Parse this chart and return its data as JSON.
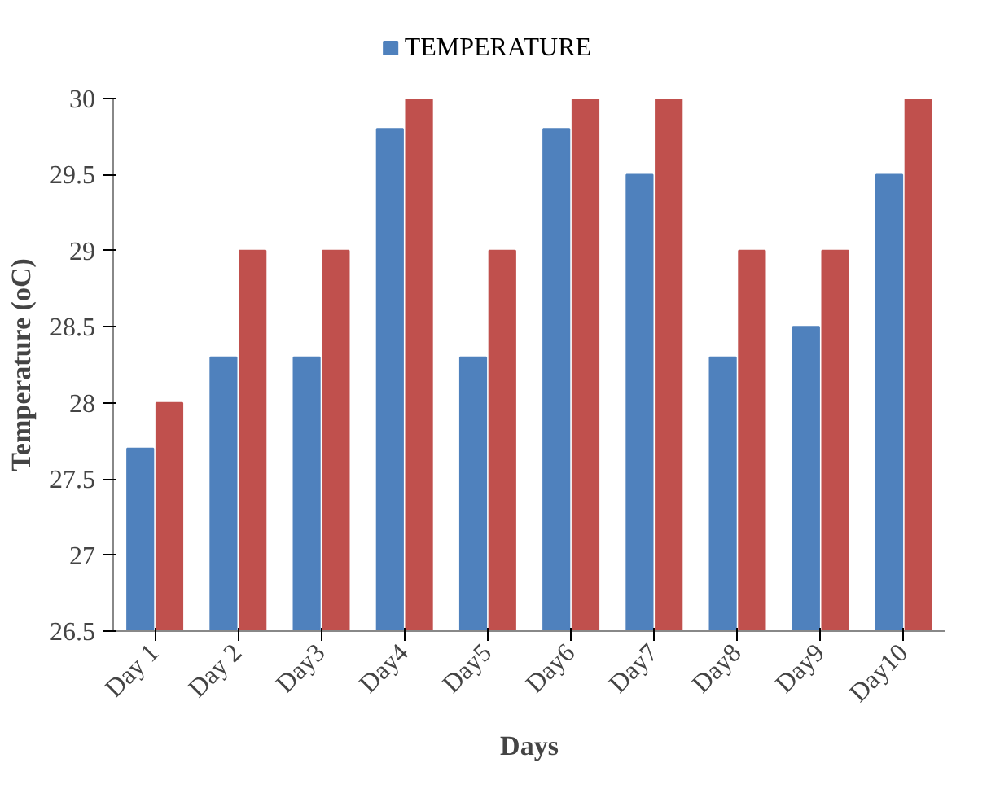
{
  "chart_data": {
    "type": "bar",
    "xlabel": "Days",
    "ylabel": "Temperature (oC)",
    "categories": [
      "Day 1",
      "Day 2",
      "Day3",
      "Day4",
      "Day5",
      "Day6",
      "Day7",
      "Day8",
      "Day9",
      "Day10"
    ],
    "series": [
      {
        "name": "TEMPERATURE",
        "color": "#4f81bd",
        "values": [
          27.7,
          28.3,
          28.3,
          29.8,
          28.3,
          29.8,
          29.5,
          28.3,
          28.5,
          29.5
        ]
      },
      {
        "color": "#c0504d",
        "values": [
          28,
          29,
          29,
          30,
          29,
          30,
          30,
          29,
          29,
          30
        ]
      }
    ],
    "ylim": [
      26.5,
      30
    ],
    "yticks": [
      26.5,
      27,
      27.5,
      28,
      28.5,
      29,
      29.5,
      30
    ],
    "grid": false,
    "legend": "top"
  }
}
